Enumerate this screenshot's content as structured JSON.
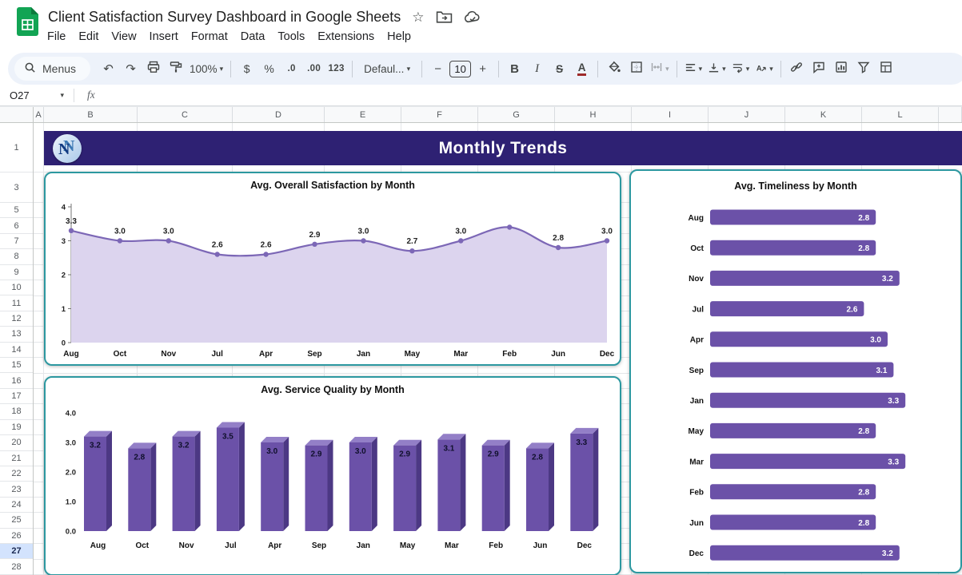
{
  "app": {
    "title": "Client Satisfaction Survey Dashboard in Google Sheets",
    "menus": [
      "File",
      "Edit",
      "View",
      "Insert",
      "Format",
      "Data",
      "Tools",
      "Extensions",
      "Help"
    ]
  },
  "icons": {
    "star": "☆",
    "undo": "↶",
    "redo": "↷",
    "dropdown": "▾",
    "minus": "−",
    "plus": "+"
  },
  "toolbar": {
    "menus_label": "Menus",
    "zoom": "100%",
    "currency": "$",
    "percent": "%",
    "dec_decrease": ".0",
    "dec_increase": ".00",
    "format_123": "123",
    "font_name": "Defaul...",
    "font_size": "10",
    "bold": "B",
    "italic": "I",
    "strikethrough": "S",
    "text_color": "A"
  },
  "formula_bar": {
    "name_box": "O27",
    "fx": "fx"
  },
  "grid": {
    "columns": [
      "A",
      "B",
      "C",
      "D",
      "E",
      "F",
      "G",
      "H",
      "I",
      "J",
      "K",
      "L"
    ],
    "rows": [
      "1",
      "3",
      "5",
      "6",
      "7",
      "8",
      "9",
      "10",
      "11",
      "12",
      "13",
      "14",
      "15",
      "16",
      "17",
      "18",
      "19",
      "20",
      "21",
      "22",
      "23",
      "24",
      "25",
      "26",
      "27",
      "28"
    ],
    "selected_row": "27"
  },
  "dashboard": {
    "banner_title": "Monthly Trends",
    "logo_text": "N"
  },
  "chart_data": [
    {
      "type": "area",
      "title": "Avg. Overall Satisfaction by Month",
      "categories": [
        "Aug",
        "Oct",
        "Nov",
        "Jul",
        "Apr",
        "Sep",
        "Jan",
        "May",
        "Mar",
        "Feb",
        "Jun",
        "Dec"
      ],
      "values": [
        3.3,
        3.0,
        3.0,
        2.6,
        2.6,
        2.9,
        3.0,
        2.7,
        3.0,
        3.4,
        2.8,
        3.0
      ],
      "labels": [
        "3.3",
        "3.0",
        "3.0",
        "2.6",
        "2.6",
        "2.9",
        "3.0",
        "2.7",
        "3.0",
        "",
        "2.8",
        "3.0"
      ],
      "ylim": [
        0,
        4
      ],
      "yticks": [
        0,
        1,
        2,
        3,
        4
      ],
      "grid": false,
      "legend": "none",
      "line_color": "#7c67b6",
      "fill_color": "#dcd4ee"
    },
    {
      "type": "bar",
      "title": "Avg. Service Quality by Month",
      "categories": [
        "Aug",
        "Oct",
        "Nov",
        "Jul",
        "Apr",
        "Sep",
        "Jan",
        "May",
        "Mar",
        "Feb",
        "Jun",
        "Dec"
      ],
      "values": [
        3.2,
        2.8,
        3.2,
        3.5,
        3.0,
        2.9,
        3.0,
        2.9,
        3.1,
        2.9,
        2.8,
        3.3
      ],
      "ylim": [
        0,
        4
      ],
      "yticks": [
        "0.0",
        "1.0",
        "2.0",
        "3.0",
        "4.0"
      ],
      "grid": false,
      "legend": "none",
      "bar_color": "#6b51a8"
    },
    {
      "type": "hbar",
      "title": "Avg. Timeliness by Month",
      "categories": [
        "Aug",
        "Oct",
        "Nov",
        "Jul",
        "Apr",
        "Sep",
        "Jan",
        "May",
        "Mar",
        "Feb",
        "Jun",
        "Dec"
      ],
      "values": [
        2.8,
        2.8,
        3.2,
        2.6,
        3.0,
        3.1,
        3.3,
        2.8,
        3.3,
        2.8,
        2.8,
        3.2
      ],
      "xlim": [
        0,
        3.5
      ],
      "grid": false,
      "legend": "none",
      "bar_color": "#6b51a8"
    }
  ]
}
